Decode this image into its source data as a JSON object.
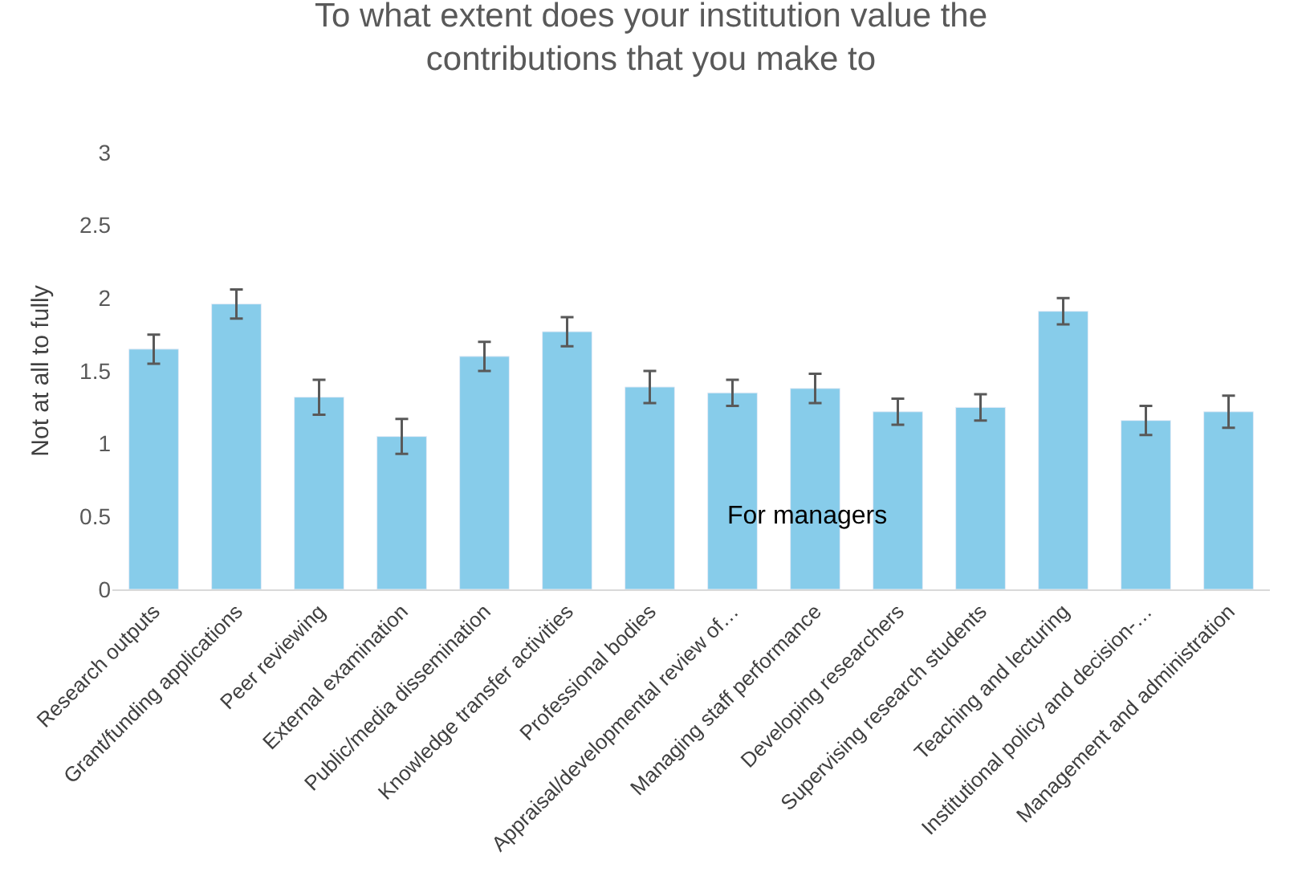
{
  "chart_data": {
    "type": "bar",
    "title": "To what extent does your institution value the contributions that you make to",
    "ylabel": "Not at all to fully",
    "categories": [
      "Research outputs",
      "Grant/funding applications",
      "Peer reviewing",
      "External examination",
      "Public/media dissemination",
      "Knowledge transfer activities",
      "Professional bodies",
      "Appraisal/developmental review of…",
      "Managing staff performance",
      "Developing researchers",
      "Supervising research students",
      "Teaching and lecturing",
      "Institutional policy and decision-…",
      "Management and administration"
    ],
    "values": [
      1.65,
      1.96,
      1.32,
      1.05,
      1.6,
      1.77,
      1.39,
      1.35,
      1.38,
      1.22,
      1.25,
      1.91,
      1.16,
      1.22
    ],
    "errors": [
      0.1,
      0.1,
      0.12,
      0.12,
      0.1,
      0.1,
      0.11,
      0.09,
      0.1,
      0.09,
      0.09,
      0.09,
      0.1,
      0.11
    ],
    "color": "#87ccea",
    "ylim": [
      0,
      3
    ],
    "yticks": [
      0,
      0.5,
      1,
      1.5,
      2,
      2.5,
      3
    ],
    "grid": false,
    "annotations": [
      "For managers"
    ]
  }
}
